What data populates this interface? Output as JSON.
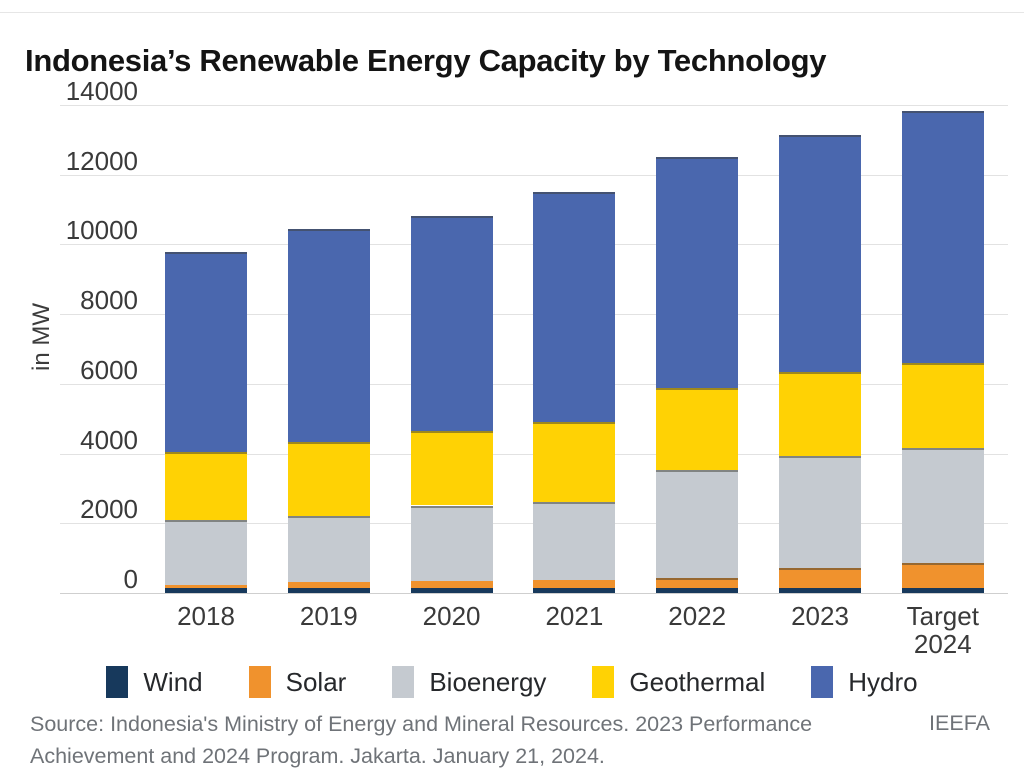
{
  "page": {
    "title": "Indonesia’s Renewable Energy Capacity by Technology"
  },
  "chart_data": {
    "type": "bar",
    "stacked": true,
    "title": "Indonesia’s Renewable Energy Capacity by Technology",
    "xlabel": "",
    "ylabel": "in MW",
    "ylim": [
      0,
      14000
    ],
    "yticks": [
      0,
      2000,
      4000,
      6000,
      8000,
      10000,
      12000,
      14000
    ],
    "grid": true,
    "legend_position": "bottom",
    "categories": [
      "2018",
      "2019",
      "2020",
      "2021",
      "2022",
      "2023",
      "Target 2024"
    ],
    "series": [
      {
        "name": "Wind",
        "color": "#17395c",
        "values": [
          145,
          155,
          155,
          155,
          155,
          155,
          155
        ]
      },
      {
        "name": "Solar",
        "color": "#f0922d",
        "values": [
          95,
          150,
          180,
          210,
          270,
          575,
          700
        ]
      },
      {
        "name": "Bioenergy",
        "color": "#c5cad0",
        "values": [
          1845,
          1890,
          2175,
          2250,
          3090,
          3195,
          3295
        ]
      },
      {
        "name": "Geothermal",
        "color": "#ffd204",
        "values": [
          1950,
          2130,
          2135,
          2280,
          2355,
          2420,
          2455
        ]
      },
      {
        "name": "Hydro",
        "color": "#4a67ae",
        "values": [
          5745,
          6120,
          6170,
          6600,
          6650,
          6785,
          7225
        ]
      }
    ],
    "totals": [
      9780,
      10445,
      10815,
      11495,
      12520,
      13130,
      13830
    ]
  },
  "footer": {
    "source": "Source: Indonesia's Ministry of Energy and Mineral Resources. 2023 Performance Achievement and 2024 Program. Jakarta. January 21, 2024.",
    "credit": "IEEFA"
  }
}
